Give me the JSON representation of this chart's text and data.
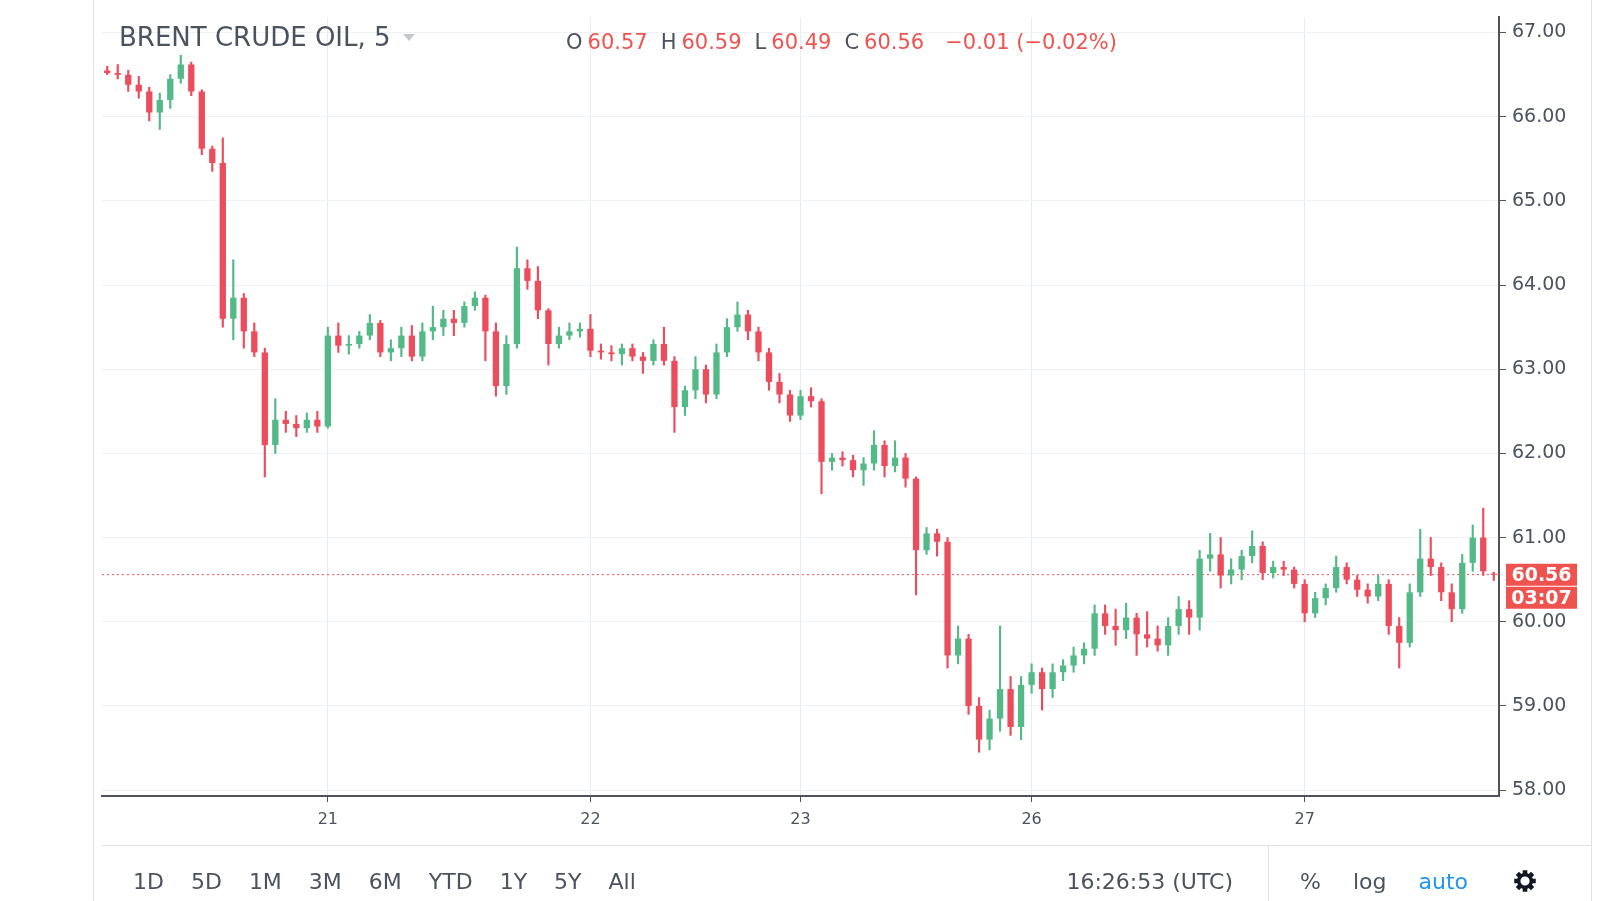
{
  "chart_data": {
    "type": "candlestick",
    "title": "BRENT CRUDE OIL, 5",
    "categories": [
      null,
      null,
      null,
      null,
      null,
      null,
      null,
      null,
      null,
      null,
      null,
      null,
      null,
      null,
      null,
      null,
      null,
      null,
      null,
      null,
      null,
      "21",
      null,
      null,
      null,
      null,
      null,
      null,
      null,
      null,
      null,
      null,
      null,
      null,
      null,
      null,
      null,
      null,
      null,
      null,
      null,
      null,
      null,
      null,
      null,
      null,
      "22",
      null,
      null,
      null,
      null,
      null,
      null,
      null,
      null,
      null,
      null,
      null,
      null,
      null,
      null,
      null,
      null,
      null,
      null,
      null,
      "23",
      null,
      null,
      null,
      null,
      null,
      null,
      null,
      null,
      null,
      null,
      null,
      null,
      null,
      null,
      null,
      null,
      null,
      null,
      null,
      null,
      null,
      "26",
      null,
      null,
      null,
      null,
      null,
      null,
      null,
      null,
      null,
      null,
      null,
      null,
      null,
      null,
      null,
      null,
      null,
      null,
      null,
      null,
      null,
      null,
      null,
      null,
      null,
      "27",
      null,
      null,
      null,
      null,
      null,
      null,
      null,
      null,
      null,
      null,
      null,
      null,
      null,
      null,
      null,
      null,
      null,
      null
    ],
    "ohlc": [
      [
        66.55,
        66.6,
        66.5,
        66.52
      ],
      [
        66.52,
        66.62,
        66.45,
        66.5
      ],
      [
        66.5,
        66.55,
        66.3,
        66.38
      ],
      [
        66.38,
        66.48,
        66.22,
        66.3
      ],
      [
        66.3,
        66.35,
        65.95,
        66.05
      ],
      [
        66.05,
        66.28,
        65.85,
        66.2
      ],
      [
        66.2,
        66.5,
        66.1,
        66.45
      ],
      [
        66.45,
        66.73,
        66.4,
        66.62
      ],
      [
        66.62,
        66.65,
        66.25,
        66.3
      ],
      [
        66.3,
        66.32,
        65.55,
        65.62
      ],
      [
        65.62,
        65.65,
        65.35,
        65.45
      ],
      [
        65.45,
        65.75,
        63.5,
        63.6
      ],
      [
        63.6,
        64.3,
        63.35,
        63.85
      ],
      [
        63.85,
        63.9,
        63.25,
        63.45
      ],
      [
        63.45,
        63.55,
        63.15,
        63.2
      ],
      [
        63.2,
        63.25,
        61.72,
        62.1
      ],
      [
        62.1,
        62.65,
        62.0,
        62.4
      ],
      [
        62.4,
        62.5,
        62.25,
        62.35
      ],
      [
        62.35,
        62.45,
        62.2,
        62.3
      ],
      [
        62.3,
        62.48,
        62.25,
        62.4
      ],
      [
        62.4,
        62.5,
        62.25,
        62.32
      ],
      [
        62.32,
        63.5,
        62.3,
        63.4
      ],
      [
        63.4,
        63.55,
        63.2,
        63.28
      ],
      [
        63.28,
        63.4,
        63.18,
        63.3
      ],
      [
        63.3,
        63.45,
        63.25,
        63.4
      ],
      [
        63.4,
        63.65,
        63.35,
        63.55
      ],
      [
        63.55,
        63.58,
        63.15,
        63.2
      ],
      [
        63.2,
        63.35,
        63.1,
        63.25
      ],
      [
        63.25,
        63.5,
        63.15,
        63.4
      ],
      [
        63.4,
        63.52,
        63.1,
        63.15
      ],
      [
        63.15,
        63.55,
        63.1,
        63.45
      ],
      [
        63.45,
        63.75,
        63.35,
        63.5
      ],
      [
        63.5,
        63.7,
        63.4,
        63.6
      ],
      [
        63.6,
        63.7,
        63.4,
        63.55
      ],
      [
        63.55,
        63.8,
        63.5,
        63.75
      ],
      [
        63.75,
        63.92,
        63.7,
        63.85
      ],
      [
        63.85,
        63.88,
        63.1,
        63.45
      ],
      [
        63.45,
        63.55,
        62.68,
        62.8
      ],
      [
        62.8,
        63.4,
        62.7,
        63.3
      ],
      [
        63.3,
        64.45,
        63.25,
        64.2
      ],
      [
        64.2,
        64.3,
        63.95,
        64.05
      ],
      [
        64.05,
        64.22,
        63.6,
        63.7
      ],
      [
        63.7,
        63.72,
        63.05,
        63.3
      ],
      [
        63.3,
        63.5,
        63.25,
        63.4
      ],
      [
        63.4,
        63.55,
        63.35,
        63.45
      ],
      [
        63.45,
        63.55,
        63.38,
        63.48
      ],
      [
        63.48,
        63.65,
        63.15,
        63.22
      ],
      [
        63.22,
        63.3,
        63.12,
        63.2
      ],
      [
        63.2,
        63.28,
        63.1,
        63.18
      ],
      [
        63.18,
        63.3,
        63.05,
        63.25
      ],
      [
        63.25,
        63.3,
        63.1,
        63.15
      ],
      [
        63.15,
        63.2,
        62.95,
        63.1
      ],
      [
        63.1,
        63.35,
        63.05,
        63.3
      ],
      [
        63.3,
        63.5,
        63.05,
        63.1
      ],
      [
        63.1,
        63.15,
        62.25,
        62.55
      ],
      [
        62.55,
        62.8,
        62.45,
        62.75
      ],
      [
        62.75,
        63.15,
        62.65,
        63.0
      ],
      [
        63.0,
        63.05,
        62.6,
        62.7
      ],
      [
        62.7,
        63.3,
        62.65,
        63.2
      ],
      [
        63.2,
        63.6,
        63.15,
        63.5
      ],
      [
        63.5,
        63.8,
        63.45,
        63.65
      ],
      [
        63.65,
        63.7,
        63.35,
        63.45
      ],
      [
        63.45,
        63.5,
        63.1,
        63.2
      ],
      [
        63.2,
        63.25,
        62.75,
        62.85
      ],
      [
        62.85,
        62.95,
        62.6,
        62.7
      ],
      [
        62.7,
        62.75,
        62.38,
        62.45
      ],
      [
        62.45,
        62.75,
        62.4,
        62.68
      ],
      [
        62.68,
        62.78,
        62.55,
        62.62
      ],
      [
        62.62,
        62.65,
        61.52,
        61.9
      ],
      [
        61.9,
        62.0,
        61.8,
        61.95
      ],
      [
        61.95,
        62.02,
        61.85,
        61.92
      ],
      [
        61.92,
        61.98,
        61.72,
        61.8
      ],
      [
        61.8,
        61.95,
        61.62,
        61.88
      ],
      [
        61.88,
        62.27,
        61.8,
        62.1
      ],
      [
        62.1,
        62.15,
        61.72,
        61.85
      ],
      [
        61.85,
        62.15,
        61.78,
        61.95
      ],
      [
        61.95,
        62.0,
        61.6,
        61.7
      ],
      [
        61.7,
        61.72,
        60.32,
        60.85
      ],
      [
        60.85,
        61.12,
        60.8,
        61.05
      ],
      [
        61.05,
        61.1,
        60.78,
        60.95
      ],
      [
        60.95,
        61.0,
        59.45,
        59.6
      ],
      [
        59.6,
        59.95,
        59.5,
        59.8
      ],
      [
        59.8,
        59.85,
        58.9,
        59.0
      ],
      [
        59.0,
        59.1,
        58.45,
        58.6
      ],
      [
        58.6,
        58.95,
        58.48,
        58.85
      ],
      [
        58.85,
        59.95,
        58.7,
        59.2
      ],
      [
        59.2,
        59.35,
        58.65,
        58.75
      ],
      [
        58.75,
        59.35,
        58.6,
        59.25
      ],
      [
        59.25,
        59.5,
        59.15,
        59.4
      ],
      [
        59.4,
        59.45,
        58.95,
        59.2
      ],
      [
        59.2,
        59.5,
        59.1,
        59.4
      ],
      [
        59.4,
        59.55,
        59.3,
        59.48
      ],
      [
        59.48,
        59.7,
        59.4,
        59.6
      ],
      [
        59.6,
        59.75,
        59.5,
        59.68
      ],
      [
        59.68,
        60.2,
        59.6,
        60.1
      ],
      [
        60.1,
        60.2,
        59.85,
        59.95
      ],
      [
        59.95,
        60.15,
        59.72,
        59.9
      ],
      [
        59.9,
        60.22,
        59.8,
        60.05
      ],
      [
        60.05,
        60.1,
        59.6,
        59.85
      ],
      [
        59.85,
        60.12,
        59.7,
        59.8
      ],
      [
        59.8,
        59.95,
        59.65,
        59.72
      ],
      [
        59.72,
        60.05,
        59.6,
        59.95
      ],
      [
        59.95,
        60.3,
        59.85,
        60.15
      ],
      [
        60.15,
        60.25,
        59.85,
        60.05
      ],
      [
        60.05,
        60.85,
        59.9,
        60.75
      ],
      [
        60.75,
        61.05,
        60.6,
        60.8
      ],
      [
        60.8,
        61.0,
        60.4,
        60.55
      ],
      [
        60.55,
        60.75,
        60.45,
        60.62
      ],
      [
        60.62,
        60.85,
        60.5,
        60.78
      ],
      [
        60.78,
        61.08,
        60.7,
        60.9
      ],
      [
        60.9,
        60.95,
        60.5,
        60.58
      ],
      [
        60.58,
        60.72,
        60.52,
        60.65
      ],
      [
        60.65,
        60.72,
        60.55,
        60.62
      ],
      [
        60.62,
        60.65,
        60.4,
        60.45
      ],
      [
        60.45,
        60.5,
        60.0,
        60.1
      ],
      [
        60.1,
        60.35,
        60.05,
        60.28
      ],
      [
        60.28,
        60.45,
        60.2,
        60.4
      ],
      [
        60.4,
        60.78,
        60.35,
        60.65
      ],
      [
        60.65,
        60.7,
        60.45,
        60.5
      ],
      [
        60.5,
        60.55,
        60.3,
        60.38
      ],
      [
        60.38,
        60.45,
        60.22,
        60.3
      ],
      [
        60.3,
        60.55,
        60.25,
        60.45
      ],
      [
        60.45,
        60.5,
        59.85,
        59.95
      ],
      [
        59.95,
        60.05,
        59.45,
        59.75
      ],
      [
        59.75,
        60.45,
        59.7,
        60.35
      ],
      [
        60.35,
        61.1,
        60.3,
        60.75
      ],
      [
        60.75,
        61.0,
        60.55,
        60.65
      ],
      [
        60.65,
        60.7,
        60.25,
        60.35
      ],
      [
        60.35,
        60.45,
        60.0,
        60.15
      ],
      [
        60.15,
        60.8,
        60.1,
        60.7
      ],
      [
        60.7,
        61.15,
        60.6,
        61.0
      ],
      [
        61.0,
        61.35,
        60.55,
        60.6
      ],
      [
        60.57,
        60.59,
        60.49,
        60.56
      ]
    ],
    "colors": [
      "#eb4d5c",
      "#eb4d5c",
      "#eb4d5c",
      "#eb4d5c",
      "#eb4d5c",
      "#53b987",
      "#53b987",
      "#53b987",
      "#eb4d5c",
      "#eb4d5c",
      "#eb4d5c",
      "#eb4d5c",
      "#53b987",
      "#eb4d5c",
      "#eb4d5c",
      "#eb4d5c",
      "#53b987",
      "#eb4d5c",
      "#eb4d5c",
      "#53b987",
      "#eb4d5c",
      "#53b987",
      "#eb4d5c",
      "#53b987",
      "#53b987",
      "#53b987",
      "#eb4d5c",
      "#53b987",
      "#53b987",
      "#eb4d5c",
      "#53b987",
      "#53b987",
      "#53b987",
      "#eb4d5c",
      "#53b987",
      "#53b987",
      "#eb4d5c",
      "#eb4d5c",
      "#53b987",
      "#53b987",
      "#eb4d5c",
      "#eb4d5c",
      "#eb4d5c",
      "#53b987",
      "#53b987",
      "#53b987",
      "#eb4d5c",
      "#eb4d5c",
      "#eb4d5c",
      "#53b987",
      "#eb4d5c",
      "#eb4d5c",
      "#53b987",
      "#eb4d5c",
      "#eb4d5c",
      "#53b987",
      "#53b987",
      "#eb4d5c",
      "#53b987",
      "#53b987",
      "#53b987",
      "#eb4d5c",
      "#eb4d5c",
      "#eb4d5c",
      "#eb4d5c",
      "#eb4d5c",
      "#53b987",
      "#eb4d5c",
      "#eb4d5c",
      "#53b987",
      "#eb4d5c",
      "#eb4d5c",
      "#53b987",
      "#53b987",
      "#eb4d5c",
      "#53b987",
      "#eb4d5c",
      "#eb4d5c",
      "#53b987",
      "#eb4d5c",
      "#eb4d5c",
      "#53b987",
      "#eb4d5c",
      "#eb4d5c",
      "#53b987",
      "#53b987",
      "#eb4d5c",
      "#53b987",
      "#53b987",
      "#eb4d5c",
      "#53b987",
      "#53b987",
      "#53b987",
      "#53b987",
      "#53b987",
      "#eb4d5c",
      "#eb4d5c",
      "#53b987",
      "#eb4d5c",
      "#eb4d5c",
      "#eb4d5c",
      "#53b987",
      "#53b987",
      "#eb4d5c",
      "#53b987",
      "#53b987",
      "#eb4d5c",
      "#53b987",
      "#53b987",
      "#53b987",
      "#eb4d5c",
      "#53b987",
      "#eb4d5c",
      "#eb4d5c",
      "#eb4d5c",
      "#53b987",
      "#53b987",
      "#53b987",
      "#eb4d5c",
      "#eb4d5c",
      "#eb4d5c",
      "#53b987",
      "#eb4d5c",
      "#eb4d5c",
      "#53b987",
      "#53b987",
      "#eb4d5c",
      "#eb4d5c",
      "#eb4d5c",
      "#53b987",
      "#53b987",
      "#eb4d5c",
      "#eb4d5c"
    ],
    "ylim": [
      57.93,
      67.18
    ],
    "yticks": [
      {
        "value": 58,
        "label": "58.00"
      },
      {
        "value": 59,
        "label": "59.00"
      },
      {
        "value": 60,
        "label": "60.00"
      },
      {
        "value": 61,
        "label": "61.00"
      },
      {
        "value": 62,
        "label": "62.00"
      },
      {
        "value": 63,
        "label": "63.00"
      },
      {
        "value": 64,
        "label": "64.00"
      },
      {
        "value": 65,
        "label": "65.00"
      },
      {
        "value": 66,
        "label": "66.00"
      },
      {
        "value": 67,
        "label": "67.00"
      }
    ],
    "grid": true,
    "ref_lines": [
      {
        "axis": "y",
        "value": 60.56,
        "label": "60.56",
        "color": "#ef5350",
        "line_style": "dotted"
      }
    ],
    "annotations": [
      "O 60.57",
      "H 60.59",
      "L 60.49",
      "C 60.56",
      "−0.01 (−0.02%)",
      "03:07",
      "1D",
      "5D",
      "1M",
      "3M",
      "6M",
      "YTD",
      "1Y",
      "5Y",
      "All",
      "16:26:53 (UTC)",
      "%",
      "log",
      "auto"
    ]
  }
}
